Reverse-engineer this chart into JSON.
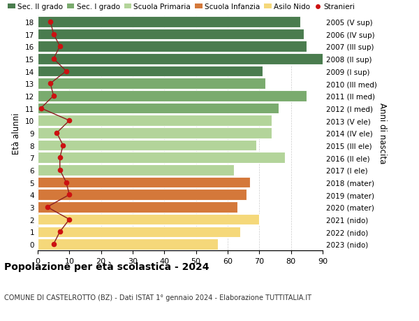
{
  "ages": [
    18,
    17,
    16,
    15,
    14,
    13,
    12,
    11,
    10,
    9,
    8,
    7,
    6,
    5,
    4,
    3,
    2,
    1,
    0
  ],
  "right_labels": [
    "2005 (V sup)",
    "2006 (IV sup)",
    "2007 (III sup)",
    "2008 (II sup)",
    "2009 (I sup)",
    "2010 (III med)",
    "2011 (II med)",
    "2012 (I med)",
    "2013 (V ele)",
    "2014 (IV ele)",
    "2015 (III ele)",
    "2016 (II ele)",
    "2017 (I ele)",
    "2018 (mater)",
    "2019 (mater)",
    "2020 (mater)",
    "2021 (nido)",
    "2022 (nido)",
    "2023 (nido)"
  ],
  "bar_values": [
    83,
    84,
    85,
    91,
    71,
    72,
    85,
    76,
    74,
    74,
    69,
    78,
    62,
    67,
    66,
    63,
    70,
    64,
    57
  ],
  "bar_colors": [
    "#4a7c4e",
    "#4a7c4e",
    "#4a7c4e",
    "#4a7c4e",
    "#4a7c4e",
    "#7aab6e",
    "#7aab6e",
    "#7aab6e",
    "#b3d49a",
    "#b3d49a",
    "#b3d49a",
    "#b3d49a",
    "#b3d49a",
    "#d4783a",
    "#d4783a",
    "#d4783a",
    "#f5d87a",
    "#f5d87a",
    "#f5d87a"
  ],
  "stranieri_values": [
    4,
    5,
    7,
    5,
    9,
    4,
    5,
    1,
    10,
    6,
    8,
    7,
    7,
    9,
    10,
    3,
    10,
    7,
    5
  ],
  "legend_labels": [
    "Sec. II grado",
    "Sec. I grado",
    "Scuola Primaria",
    "Scuola Infanzia",
    "Asilo Nido",
    "Stranieri"
  ],
  "legend_colors": [
    "#4a7c4e",
    "#7aab6e",
    "#b3d49a",
    "#d4783a",
    "#f5d87a",
    "#cc1111"
  ],
  "ylabel": "Età alunni",
  "right_ylabel": "Anni di nascita",
  "title": "Popolazione per età scolastica - 2024",
  "subtitle": "COMUNE DI CASTELROTTO (BZ) - Dati ISTAT 1° gennaio 2024 - Elaborazione TUTTITALIA.IT",
  "xlim": [
    0,
    90
  ],
  "grid_color": "#cccccc",
  "stranieri_color": "#cc1111",
  "stranieri_line_color": "#8b2020"
}
